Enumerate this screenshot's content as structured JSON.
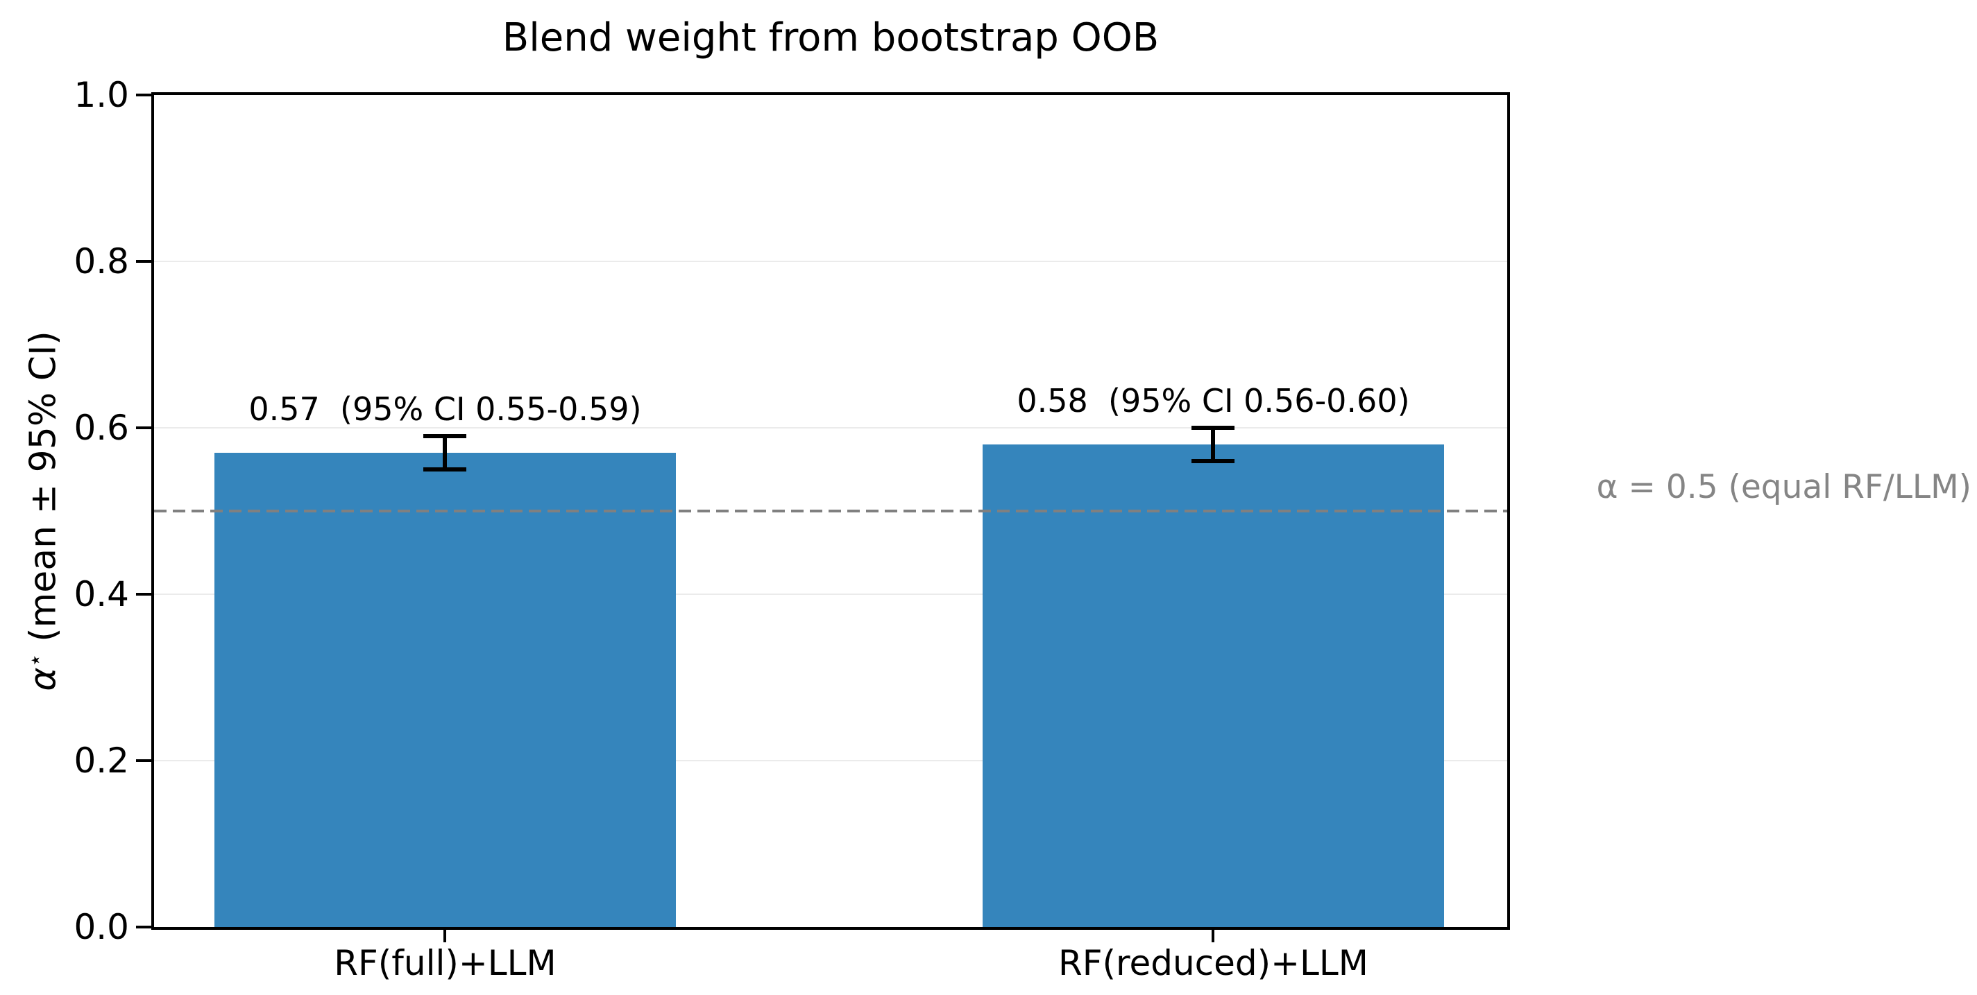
{
  "chart_data": {
    "type": "bar",
    "title": "Blend weight from bootstrap OOB",
    "ylabel": {
      "alpha": "α",
      "star": "⋆",
      "rest": " (mean ± 95% CI)"
    },
    "categories": [
      "RF(full)+LLM",
      "RF(reduced)+LLM"
    ],
    "values": [
      0.57,
      0.58
    ],
    "ci_low": [
      0.55,
      0.56
    ],
    "ci_high": [
      0.59,
      0.6
    ],
    "bar_annotations": [
      "0.57  (95% CI 0.55-0.59)",
      "0.58  (95% CI 0.56-0.60)"
    ],
    "yticks": [
      0.0,
      0.2,
      0.4,
      0.6,
      0.8,
      1.0
    ],
    "ytick_labels": [
      "0.0",
      "0.2",
      "0.4",
      "0.6",
      "0.8",
      "1.0"
    ],
    "ylim": [
      0.0,
      1.0
    ],
    "grid": true,
    "legend_position": "none",
    "reference_line": {
      "value": 0.5,
      "label": "α = 0.5 (equal RF/LLM)",
      "color": "#808080",
      "style": "dashed"
    },
    "bar_color": "#3585bc",
    "error_bar_color": "#000000"
  }
}
